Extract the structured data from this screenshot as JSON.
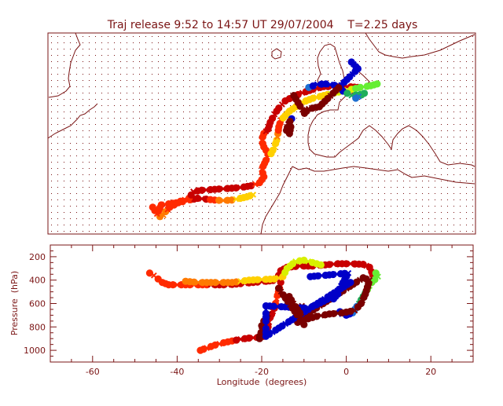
{
  "title": "Traj release 9:52 to 14:57 UT 29/07/2004    T=2.25 days",
  "colors": {
    "frame": "#7a1414",
    "coast": "#7a1414",
    "dots": "#7a1414",
    "palette": [
      "#7a0000",
      "#c80000",
      "#ff2a00",
      "#ff7a00",
      "#ffd000",
      "#d8f000",
      "#66ee33",
      "#1fae5a",
      "#1f6fd0",
      "#0000c8"
    ]
  },
  "chart_data": [
    {
      "type": "scatter",
      "panel": "map",
      "title": "Traj release 9:52 to 14:57 UT 29/07/2004    T=2.25 days",
      "xlabel": "",
      "ylabel": "",
      "xlim": [
        -70,
        30
      ],
      "ylim": [
        20,
        65
      ],
      "grid": "dotted",
      "series": [
        {
          "points": [
            [
              -43.8,
              23.9,
              "#ff7a00"
            ],
            [
              -43.0,
              24.2,
              "#ff7a00"
            ],
            [
              -42.5,
              25.0,
              "#ff7a00"
            ],
            [
              -41.5,
              26.0,
              "#ff2a00"
            ],
            [
              -39.5,
              27.0,
              "#ff2a00"
            ],
            [
              -37.5,
              27.5,
              "#ff2a00"
            ],
            [
              -35.0,
              28.0,
              "#c80000"
            ],
            [
              -33.0,
              27.8,
              "#c80000"
            ],
            [
              -31.0,
              27.6,
              "#ff2a00"
            ],
            [
              -29.0,
              27.5,
              "#ff7a00"
            ],
            [
              -27.0,
              27.6,
              "#ff7a00"
            ],
            [
              -25.0,
              28.0,
              "#ffd000"
            ],
            [
              -23.5,
              28.3,
              "#ffd000"
            ],
            [
              -22.0,
              28.8,
              "#ffd000"
            ]
          ]
        },
        {
          "points": [
            [
              -45.5,
              26.0,
              "#ff2a00"
            ],
            [
              -44.5,
              24.5,
              "#ff2a00"
            ],
            [
              -43.5,
              26.5,
              "#ff2a00"
            ],
            [
              -40.0,
              27.0,
              "#ff2a00"
            ],
            [
              -37.0,
              28.0,
              "#ff2a00"
            ],
            [
              -36.0,
              29.5,
              "#c80000"
            ],
            [
              -34.0,
              29.8,
              "#c80000"
            ],
            [
              -31.0,
              30.0,
              "#c80000"
            ],
            [
              -28.0,
              30.2,
              "#c80000"
            ],
            [
              -25.0,
              30.4,
              "#c80000"
            ],
            [
              -22.5,
              30.8,
              "#c80000"
            ],
            [
              -20.5,
              31.5,
              "#ff2a00"
            ],
            [
              -19.5,
              32.8,
              "#ff2a00"
            ],
            [
              -20.0,
              34.5,
              "#ff2a00"
            ],
            [
              -19.0,
              36.5,
              "#ff2a00"
            ],
            [
              -18.5,
              38.0,
              "#ff2a00"
            ],
            [
              -19.5,
              39.5,
              "#ff2a00"
            ],
            [
              -20.0,
              41.0,
              "#ff2a00"
            ],
            [
              -19.5,
              42.5,
              "#ff2a00"
            ],
            [
              -18.5,
              43.5,
              "#c80000"
            ],
            [
              -18.0,
              45.0,
              "#c80000"
            ],
            [
              -17.0,
              46.8,
              "#c80000"
            ],
            [
              -16.0,
              48.2,
              "#c80000"
            ],
            [
              -14.5,
              49.8,
              "#c80000"
            ],
            [
              -12.5,
              50.8,
              "#c80000"
            ],
            [
              -10.5,
              51.6,
              "#c80000"
            ],
            [
              -8.0,
              52.4,
              "#c80000"
            ],
            [
              -5.5,
              53.0,
              "#c80000"
            ],
            [
              -2.5,
              53.0,
              "#c80000"
            ],
            [
              0.0,
              53.0,
              "#c80000"
            ],
            [
              2.5,
              52.8,
              "#c80000"
            ]
          ]
        },
        {
          "points": [
            [
              -17.8,
              38.0,
              "#ffd000"
            ],
            [
              -17.0,
              39.5,
              "#ffd000"
            ],
            [
              -16.5,
              41.0,
              "#ffd000"
            ],
            [
              -16.2,
              42.5,
              "#ff7a00"
            ],
            [
              -16.0,
              44.0,
              "#ff2a00"
            ],
            [
              -15.5,
              45.5,
              "#ff2a00"
            ],
            [
              -14.5,
              46.5,
              "#ffd000"
            ],
            [
              -13.5,
              47.5,
              "#ffd000"
            ],
            [
              -12.0,
              48.5,
              "#ffd000"
            ],
            [
              -10.5,
              49.5,
              "#ffd000"
            ],
            [
              -8.0,
              50.4,
              "#ffd000"
            ],
            [
              -5.5,
              51.0,
              "#ffd000"
            ],
            [
              -3.0,
              51.6,
              "#d8f000"
            ],
            [
              0.0,
              52.2,
              "#d8f000"
            ],
            [
              3.0,
              52.8,
              "#66ee33"
            ],
            [
              5.5,
              53.2,
              "#66ee33"
            ],
            [
              7.0,
              53.6,
              "#66ee33"
            ]
          ]
        },
        {
          "points": [
            [
              -9.0,
              52.8,
              "#1f6fd0"
            ],
            [
              -7.0,
              53.5,
              "#0000c8"
            ],
            [
              -5.0,
              53.6,
              "#0000c8"
            ],
            [
              -3.0,
              53.3,
              "#0000c8"
            ],
            [
              -1.0,
              52.0,
              "#0000c8"
            ],
            [
              1.0,
              51.0,
              "#1fae5a"
            ],
            [
              3.0,
              51.2,
              "#1fae5a"
            ],
            [
              4.0,
              51.5,
              "#1fae5a"
            ],
            [
              2.0,
              50.4,
              "#1f6fd0"
            ]
          ]
        },
        {
          "points": [
            [
              -13.0,
              45.8,
              "#0000c8"
            ],
            [
              -13.8,
              44.6,
              "#7a0000"
            ],
            [
              -14.2,
              43.2,
              "#7a0000"
            ],
            [
              -13.5,
              42.5,
              "#7a0000"
            ],
            [
              -13.2,
              44.0,
              "#7a0000"
            ]
          ]
        },
        {
          "points": [
            [
              1.0,
              58.5,
              "#0000c8"
            ],
            [
              1.5,
              58.0,
              "#0000c8"
            ],
            [
              2.0,
              57.5,
              "#0000c8"
            ],
            [
              2.5,
              57.0,
              "#0000c8"
            ],
            [
              -6.5,
              48.5,
              "#7a0000"
            ],
            [
              -9.0,
              48.0,
              "#7a0000"
            ],
            [
              -10.0,
              47.0,
              "#7a0000"
            ],
            [
              -12.5,
              51.0,
              "#7a0000"
            ]
          ]
        }
      ]
    },
    {
      "type": "scatter",
      "panel": "profile",
      "title": "",
      "xlabel": "Longitude  (degrees)",
      "ylabel": "Pressure  (hPa)",
      "xlim": [
        -70,
        30
      ],
      "ylim": [
        1100,
        100
      ],
      "xticks": [
        "-60",
        "-40",
        "-20",
        "0",
        "20"
      ],
      "yticks": [
        "200",
        "400",
        "600",
        "800",
        "1000"
      ],
      "series": [
        {
          "points": [
            [
              -46.5,
              340,
              "#ff2a00"
            ],
            [
              -45.5,
              360,
              "#ff2a00"
            ],
            [
              -44.5,
              390,
              "#ff2a00"
            ],
            [
              -43.5,
              420,
              "#ff2a00"
            ],
            [
              -42,
              440,
              "#ff2a00"
            ],
            [
              -40,
              440,
              "#ff2a00"
            ],
            [
              -37,
              440,
              "#ff2a00"
            ],
            [
              -34,
              440,
              "#ff2a00"
            ],
            [
              -31,
              440,
              "#c80000"
            ],
            [
              -28,
              440,
              "#c80000"
            ],
            [
              -25,
              430,
              "#c80000"
            ],
            [
              -22,
              420,
              "#c80000"
            ],
            [
              -19,
              410,
              "#c80000"
            ],
            [
              -16.5,
              400,
              "#c80000"
            ],
            [
              -16,
              360,
              "#c80000"
            ],
            [
              -15.5,
              320,
              "#c80000"
            ],
            [
              -14,
              290,
              "#c80000"
            ],
            [
              -11,
              280,
              "#c80000"
            ],
            [
              -8,
              280,
              "#c80000"
            ],
            [
              -5,
              270,
              "#c80000"
            ],
            [
              -2,
              260,
              "#c80000"
            ],
            [
              1,
              260,
              "#c80000"
            ],
            [
              4,
              265,
              "#c80000"
            ],
            [
              5.5,
              290,
              "#c80000"
            ],
            [
              6,
              330,
              "#c80000"
            ],
            [
              6.5,
              380,
              "#c80000"
            ],
            [
              6,
              420,
              "#c80000"
            ]
          ]
        },
        {
          "points": [
            [
              -34.5,
              1000,
              "#ff2a00"
            ],
            [
              -33,
              980,
              "#ff2a00"
            ],
            [
              -31,
              955,
              "#ff2a00"
            ],
            [
              -29,
              935,
              "#ff2a00"
            ],
            [
              -27,
              920,
              "#ff2a00"
            ],
            [
              -25,
              905,
              "#c80000"
            ],
            [
              -23,
              895,
              "#c80000"
            ],
            [
              -21,
              890,
              "#c80000"
            ],
            [
              -19.5,
              880,
              "#c80000"
            ],
            [
              -19,
              850,
              "#c80000"
            ],
            [
              -18.5,
              800,
              "#c80000"
            ],
            [
              -18,
              720,
              "#c80000"
            ],
            [
              -17,
              640,
              "#c80000"
            ],
            [
              -16.5,
              560,
              "#ff2a00"
            ],
            [
              -15.8,
              470,
              "#ff2a00"
            ],
            [
              -15.5,
              420,
              "#c80000"
            ]
          ]
        },
        {
          "points": [
            [
              -38,
              410,
              "#ff7a00"
            ],
            [
              -35,
              420,
              "#ff7a00"
            ],
            [
              -31,
              420,
              "#ff7a00"
            ],
            [
              -27,
              420,
              "#ff7a00"
            ],
            [
              -23,
              400,
              "#ffd000"
            ],
            [
              -20,
              395,
              "#ffd000"
            ],
            [
              -17,
              390,
              "#ffd000"
            ],
            [
              -15,
              370,
              "#ffd000"
            ],
            [
              -14,
              300,
              "#d8f000"
            ],
            [
              -12,
              240,
              "#d8f000"
            ],
            [
              -10,
              230,
              "#d8f000"
            ],
            [
              -8,
              250,
              "#d8f000"
            ],
            [
              -6,
              270,
              "#d8f000"
            ]
          ]
        },
        {
          "points": [
            [
              7,
              340,
              "#66ee33"
            ],
            [
              7.5,
              370,
              "#66ee33"
            ],
            [
              6,
              420,
              "#66ee33"
            ],
            [
              5,
              480,
              "#66ee33"
            ],
            [
              4,
              540,
              "#1fae5a"
            ],
            [
              3,
              600,
              "#1fae5a"
            ],
            [
              2,
              650,
              "#1f6fd0"
            ],
            [
              1.5,
              680,
              "#1f6fd0"
            ],
            [
              0,
              700,
              "#0000c8"
            ],
            [
              -1,
              690,
              "#0000c8"
            ],
            [
              -1.5,
              670,
              "#0000c8"
            ]
          ]
        },
        {
          "points": [
            [
              -11.5,
              760,
              "#7a0000"
            ],
            [
              -10,
              740,
              "#7a0000"
            ],
            [
              -7,
              710,
              "#7a0000"
            ],
            [
              -4,
              690,
              "#7a0000"
            ],
            [
              -1,
              680,
              "#7a0000"
            ],
            [
              2,
              660,
              "#7a0000"
            ],
            [
              3.5,
              600,
              "#7a0000"
            ],
            [
              4.5,
              520,
              "#7a0000"
            ],
            [
              5,
              460,
              "#7a0000"
            ],
            [
              5.5,
              400,
              "#7a0000"
            ],
            [
              4,
              380,
              "#7a0000"
            ],
            [
              -11,
              730,
              "#7a0000"
            ],
            [
              -11,
              650,
              "#7a0000"
            ],
            [
              -10.5,
              620,
              "#7a0000"
            ],
            [
              -11.5,
              760,
              "#7a0000"
            ]
          ]
        },
        {
          "points": [
            [
              -19.5,
              860,
              "#7a0000"
            ],
            [
              -20,
              830,
              "#7a0000"
            ],
            [
              -20,
              790,
              "#7a0000"
            ],
            [
              -19.5,
              750,
              "#7a0000"
            ],
            [
              -19,
              720,
              "#7a0000"
            ],
            [
              -18.5,
              690,
              "#7a0000"
            ],
            [
              -20.5,
              880,
              "#7a0000"
            ],
            [
              -20.5,
              900,
              "#7a0000"
            ]
          ]
        },
        {
          "points": [
            [
              -8.5,
              370,
              "#0000c8"
            ],
            [
              0.5,
              340,
              "#0000c8"
            ],
            [
              -3,
              560,
              "#0000c8"
            ],
            [
              -2,
              520,
              "#0000c8"
            ],
            [
              -7,
              610,
              "#0000c8"
            ],
            [
              -9,
              640,
              "#0000c8"
            ],
            [
              -19,
              620,
              "#0000c8"
            ],
            [
              -19,
              880,
              "#0000c8"
            ],
            [
              1,
              420,
              "#0000c8"
            ]
          ]
        },
        {
          "points": [
            [
              -13.5,
              540,
              "#7a0000"
            ],
            [
              -12.5,
              600,
              "#7a0000"
            ],
            [
              -11,
              680,
              "#7a0000"
            ],
            [
              -10,
              780,
              "#7a0000"
            ],
            [
              -16,
              470,
              "#7a0000"
            ]
          ]
        }
      ]
    }
  ]
}
